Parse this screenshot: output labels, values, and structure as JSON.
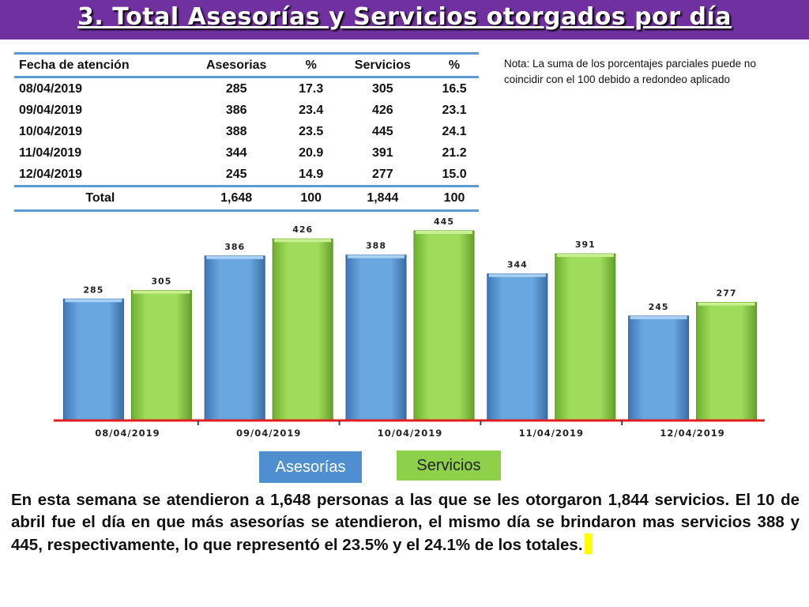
{
  "title": "3.  Total Asesorías y Servicios otorgados por día",
  "table": {
    "headers": [
      "Fecha de atención",
      "Asesorias",
      "%",
      "Servicios",
      "%"
    ],
    "rows": [
      [
        "08/04/2019",
        "285",
        "17.3",
        "305",
        "16.5"
      ],
      [
        "09/04/2019",
        "386",
        "23.4",
        "426",
        "23.1"
      ],
      [
        "10/04/2019",
        "388",
        "23.5",
        "445",
        "24.1"
      ],
      [
        "11/04/2019",
        "344",
        "20.9",
        "391",
        "21.2"
      ],
      [
        "12/04/2019",
        "245",
        "14.9",
        "277",
        "15.0"
      ]
    ],
    "total": [
      "Total",
      "1,648",
      "100",
      "1,844",
      "100"
    ]
  },
  "note": "Nota: La suma de los porcentajes parciales puede no coincidir con el 100 debido a redondeo aplicado",
  "chart_data": {
    "type": "bar",
    "categories": [
      "08/04/2019",
      "09/04/2019",
      "10/04/2019",
      "11/04/2019",
      "12/04/2019"
    ],
    "series": [
      {
        "name": "Asesorías",
        "values": [
          285,
          386,
          388,
          344,
          245
        ],
        "color": "#5b9bd5"
      },
      {
        "name": "Servicios",
        "values": [
          305,
          426,
          445,
          391,
          277
        ],
        "color": "#92d050"
      }
    ],
    "title": "",
    "xlabel": "",
    "ylabel": "",
    "ylim": [
      0,
      445
    ],
    "grid": false,
    "legend": "bottom",
    "axis_color": "#e02020"
  },
  "legend": {
    "asesorias": "Asesorías",
    "servicios": "Servicios"
  },
  "summary": "En esta semana se atendieron a 1,648 personas a las que se les otorgaron 1,844 servicios. El 10 de abril fue el día en que más asesorías se atendieron, el mismo día se brindaron mas servicios 388 y 445, respectivamente, lo que representó  el 23.5% y el 24.1% de los totales."
}
